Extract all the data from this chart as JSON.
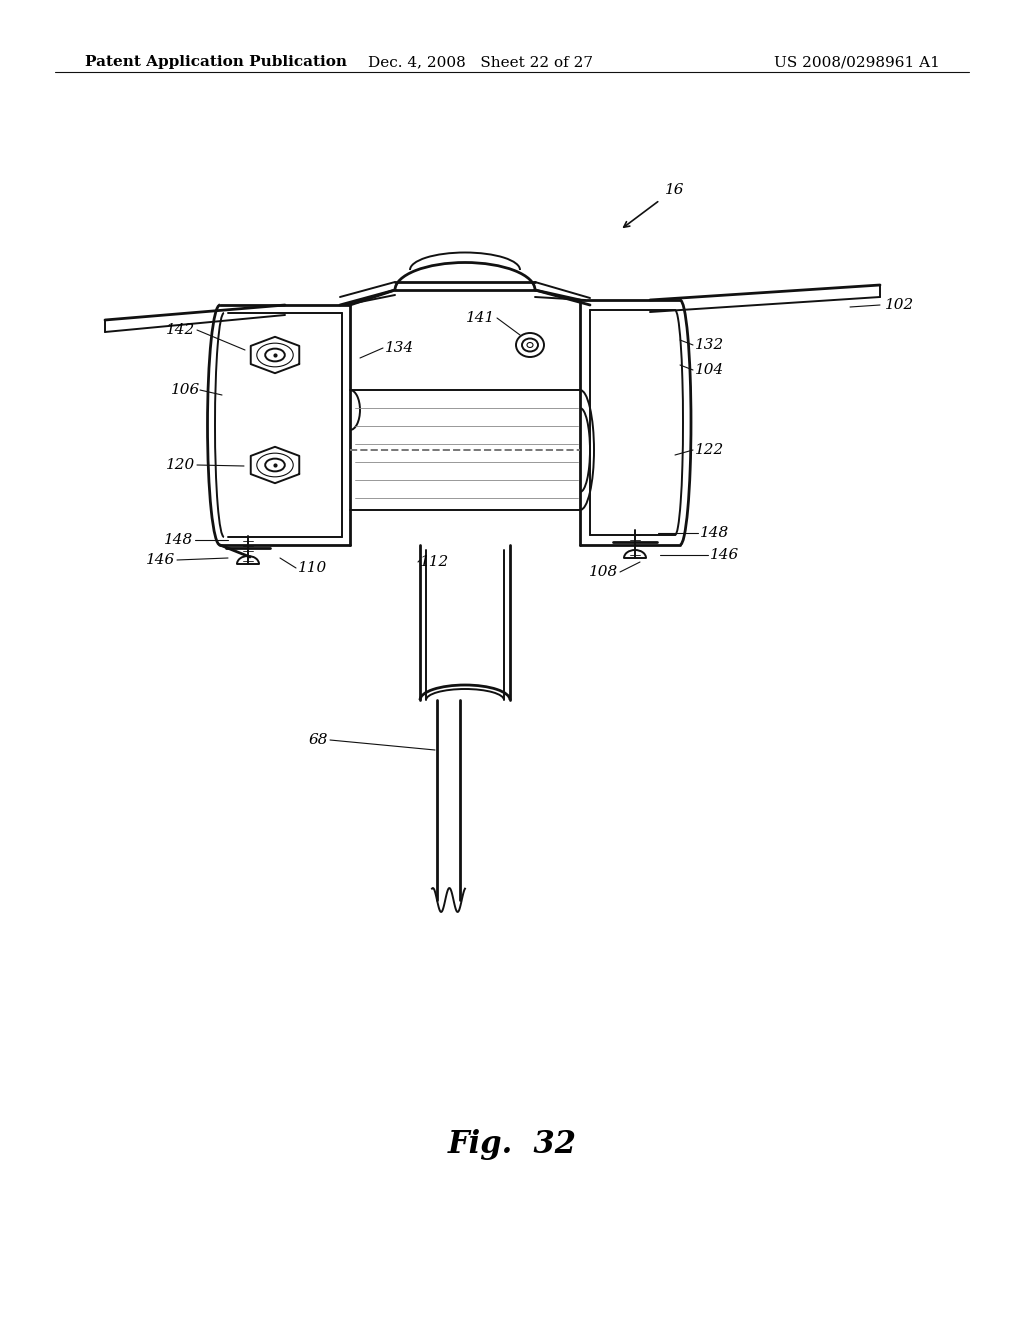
{
  "background_color": "#ffffff",
  "header_left": "Patent Application Publication",
  "header_center": "Dec. 4, 2008   Sheet 22 of 27",
  "header_right": "US 2008/0298961 A1",
  "figure_caption": "Fig.  32",
  "title_fontsize": 22,
  "header_fontsize": 11,
  "label_fontsize": 11,
  "lw_main": 1.4,
  "lw_thick": 2.0,
  "lw_thin": 0.8
}
